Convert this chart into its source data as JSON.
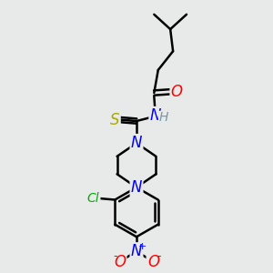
{
  "bg_color": "#e8eaea",
  "bond_color": "#000000",
  "bond_width": 1.8,
  "atoms": {
    "O": {
      "color": "#ff0000",
      "fontsize": 12
    },
    "N": {
      "color": "#0000ff",
      "fontsize": 12
    },
    "S": {
      "color": "#aaaa00",
      "fontsize": 12
    },
    "Cl": {
      "color": "#00aa00",
      "fontsize": 10
    },
    "H": {
      "color": "#7799aa",
      "fontsize": 10
    }
  },
  "figsize": [
    3.0,
    3.0
  ],
  "dpi": 100,
  "xlim": [
    0,
    10
  ],
  "ylim": [
    0,
    10
  ]
}
